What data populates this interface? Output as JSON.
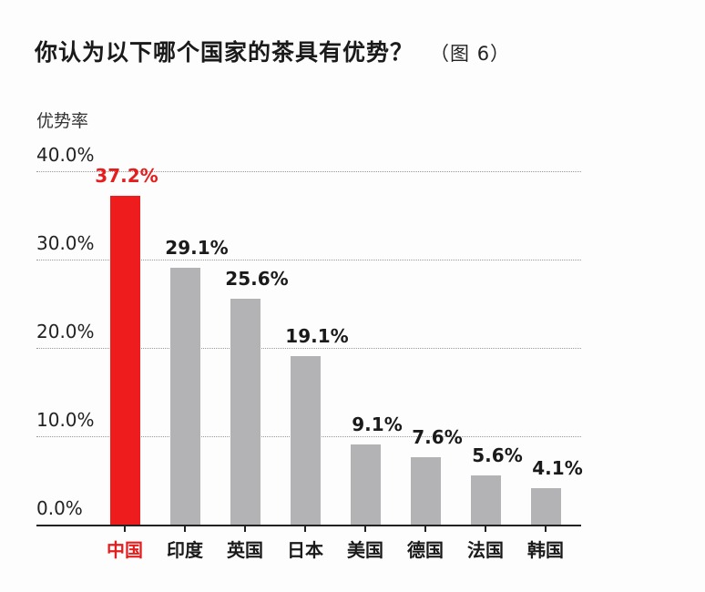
{
  "title": "你认为以下哪个国家的茶具有优势？",
  "figure_ref": "（图 6）",
  "colors": {
    "highlight": "#ee1c1c",
    "bar": "#b3b3b6",
    "text": "#1a1a1a"
  },
  "chart_data": {
    "type": "bar",
    "title": "你认为以下哪个国家的茶具有优势？",
    "xlabel": "",
    "ylabel": "优势率",
    "ylim": [
      0,
      40
    ],
    "y_ticks": [
      "0.0%",
      "10.0%",
      "20.0%",
      "30.0%",
      "40.0%"
    ],
    "grid": true,
    "categories": [
      "中国",
      "印度",
      "英国",
      "日本",
      "美国",
      "德国",
      "法国",
      "韩国"
    ],
    "values": [
      37.2,
      29.1,
      25.6,
      19.1,
      9.1,
      7.6,
      5.6,
      4.1
    ],
    "value_labels": [
      "37.2%",
      "29.1%",
      "25.6%",
      "19.1%",
      "9.1%",
      "7.6%",
      "5.6%",
      "4.1%"
    ],
    "highlight_index": 0
  }
}
